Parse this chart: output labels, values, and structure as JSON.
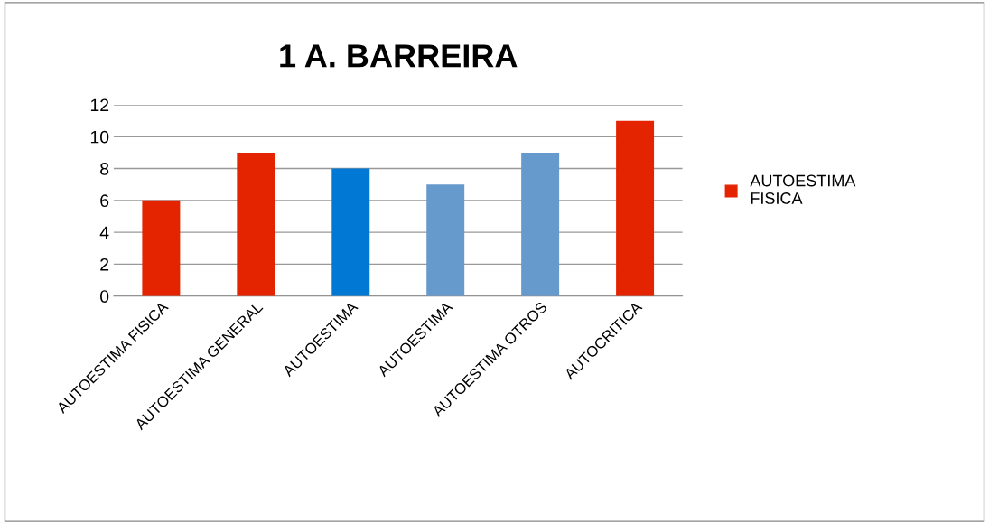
{
  "chart_data": {
    "type": "bar",
    "title": "1 A. BARREIRA",
    "categories": [
      "AUTOESTIMA FISICA",
      "AUTOESTIMA GENERAL",
      "AUTOESTIMA",
      "AUTOESTIMA",
      "AUTOESTIMA OTROS",
      "AUTOCRITICA"
    ],
    "series": [
      {
        "name": "AUTOESTIMA FISICA",
        "color": "#e42300",
        "colors": [
          "#e42300",
          "#e42300",
          "#0078d4",
          "#6699cc",
          "#6699cc",
          "#e42300"
        ],
        "values": [
          6,
          9,
          8,
          7,
          9,
          11
        ]
      }
    ],
    "ylim": [
      0,
      12
    ],
    "yticks": [
      0,
      2,
      4,
      6,
      8,
      10,
      12
    ],
    "grid": "y",
    "legend": "right"
  }
}
